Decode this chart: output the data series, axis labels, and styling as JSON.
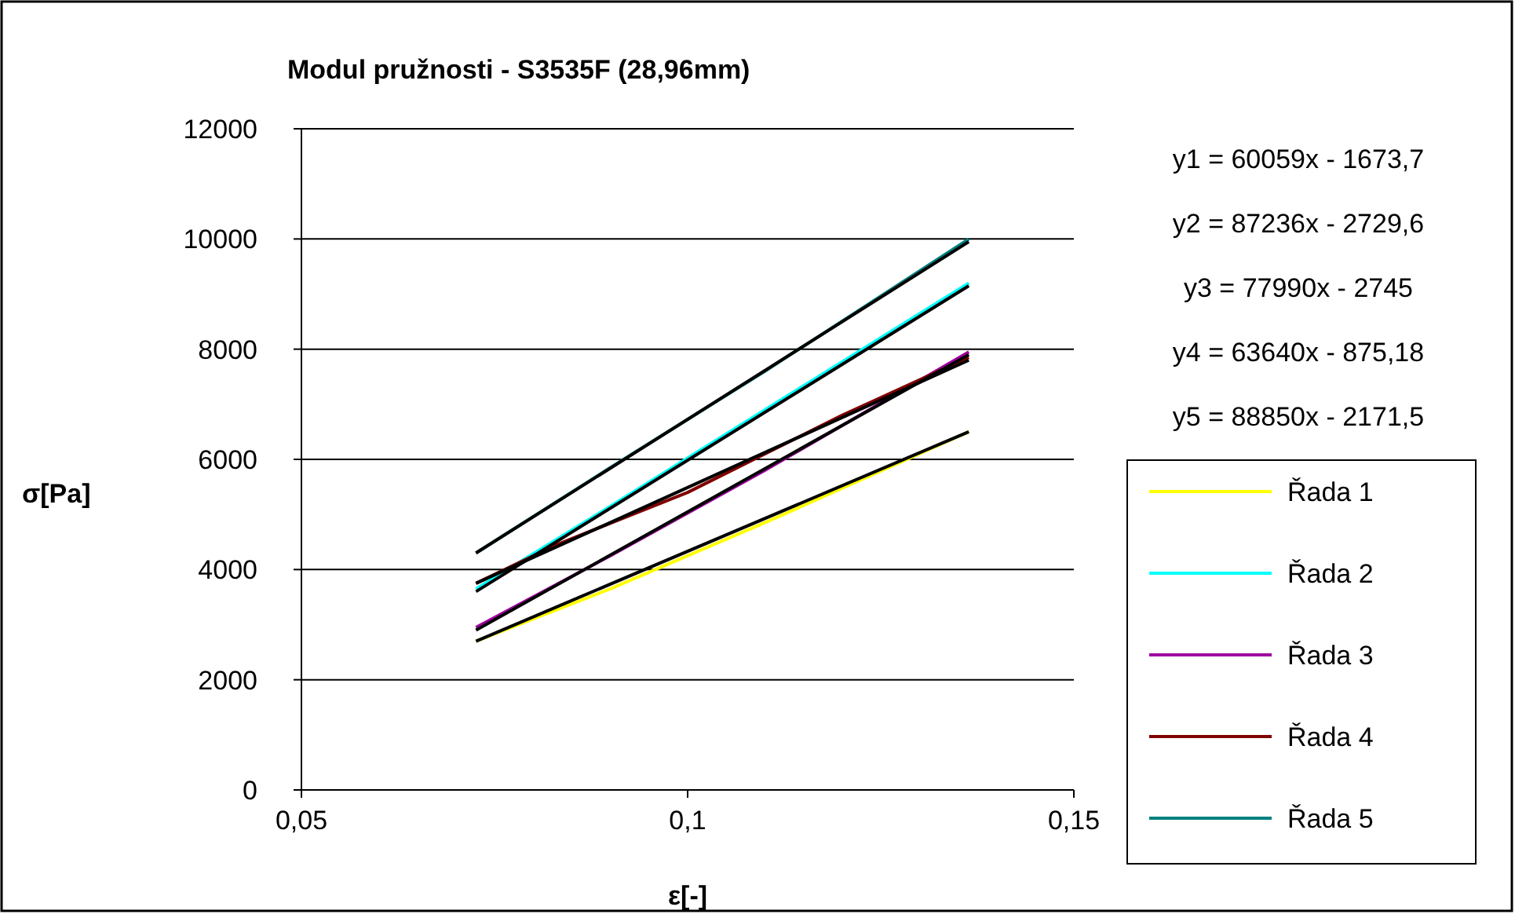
{
  "chart_data": {
    "type": "line",
    "title": "Modul pružnosti - S3535F (28,96mm)",
    "xlabel": "ε[-]",
    "ylabel": "σ[Pa]",
    "xlim": [
      0.05,
      0.15
    ],
    "xticks": [
      {
        "value": 0.05,
        "label": "0,05"
      },
      {
        "value": 0.1,
        "label": "0,1"
      },
      {
        "value": 0.15,
        "label": "0,15"
      }
    ],
    "ylim": [
      0,
      12000
    ],
    "yticks": [
      0,
      2000,
      4000,
      6000,
      8000,
      10000,
      12000
    ],
    "grid": "y",
    "legend": "right",
    "marker": "none",
    "line_style": "solid",
    "annotations": [
      "y1 = 60059x - 1673,7",
      "y2 = 87236x - 2729,6",
      "y3 = 77990x - 2745",
      "y4 = 63640x - 875,18",
      "y5 = 88850x - 2171,5"
    ],
    "series": [
      {
        "name": "Řada 1",
        "color": "#ffff00",
        "x": [
          0.0726,
          0.09,
          0.11,
          0.1364
        ],
        "values": [
          2700,
          3650,
          4850,
          6500
        ]
      },
      {
        "name": "Řada 2",
        "color": "#00ffff",
        "x": [
          0.0726,
          0.09,
          0.11,
          0.1364
        ],
        "values": [
          3650,
          5150,
          6900,
          9200
        ]
      },
      {
        "name": "Řada 3",
        "color": "#a000a0",
        "x": [
          0.0726,
          0.09,
          0.11,
          0.1364
        ],
        "values": [
          2950,
          4250,
          5800,
          7950
        ]
      },
      {
        "name": "Řada 4",
        "color": "#800000",
        "x": [
          0.0726,
          0.083,
          0.1,
          0.12,
          0.1364
        ],
        "values": [
          3750,
          4450,
          5400,
          6800,
          7850
        ]
      },
      {
        "name": "Řada 5",
        "color": "#008080",
        "x": [
          0.0726,
          0.09,
          0.11,
          0.1364
        ],
        "values": [
          4300,
          5850,
          7600,
          10000
        ]
      },
      {
        "color": "#000000",
        "x": [
          0.0726,
          0.1364
        ],
        "values": [
          2700,
          6500
        ]
      },
      {
        "color": "#000000",
        "x": [
          0.0726,
          0.1364
        ],
        "values": [
          3600,
          9150
        ]
      },
      {
        "color": "#000000",
        "x": [
          0.0726,
          0.1364
        ],
        "values": [
          2900,
          7900
        ]
      },
      {
        "color": "#000000",
        "x": [
          0.0726,
          0.1364
        ],
        "values": [
          3750,
          7800
        ]
      },
      {
        "color": "#000000",
        "x": [
          0.0726,
          0.1364
        ],
        "values": [
          4300,
          9950
        ]
      }
    ]
  }
}
